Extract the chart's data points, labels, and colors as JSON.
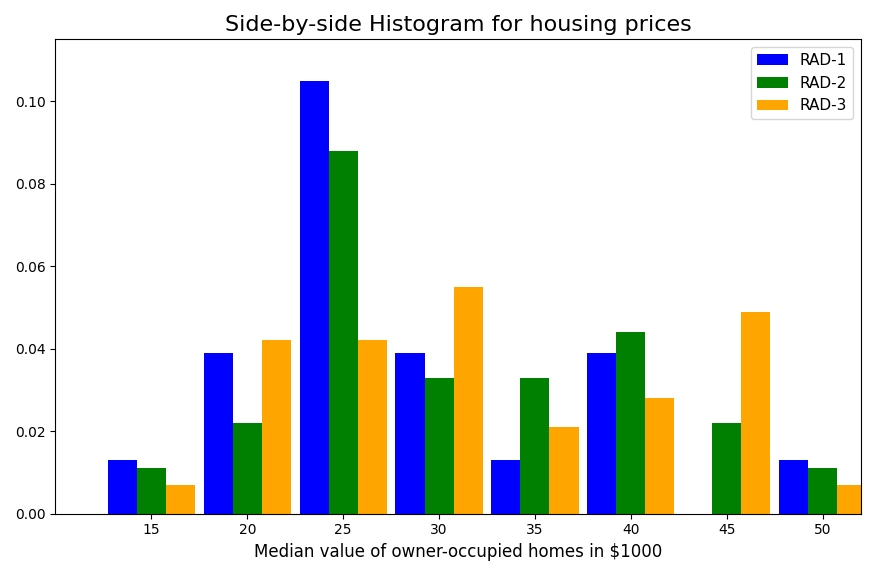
{
  "title": "Side-by-side Histogram for housing prices",
  "xlabel": "Median value of owner-occupied homes in $1000",
  "colors": [
    "blue",
    "green",
    "orange"
  ],
  "labels": [
    "RAD-1",
    "RAD-2",
    "RAD-3"
  ],
  "tick_positions": [
    15,
    20,
    25,
    30,
    35,
    40,
    45,
    50
  ],
  "rad1": [
    0.013,
    0.039,
    0.105,
    0.039,
    0.013,
    0.039,
    0.0,
    0.013
  ],
  "rad2": [
    0.011,
    0.022,
    0.088,
    0.033,
    0.033,
    0.044,
    0.022,
    0.011
  ],
  "rad3": [
    0.007,
    0.042,
    0.042,
    0.055,
    0.021,
    0.028,
    0.049,
    0.007
  ],
  "xlim": [
    10,
    52
  ],
  "ylim": [
    0,
    0.115
  ],
  "figsize": [
    8.76,
    5.76
  ],
  "dpi": 100,
  "title_fontsize": 16,
  "xlabel_fontsize": 12,
  "legend_fontsize": 11
}
